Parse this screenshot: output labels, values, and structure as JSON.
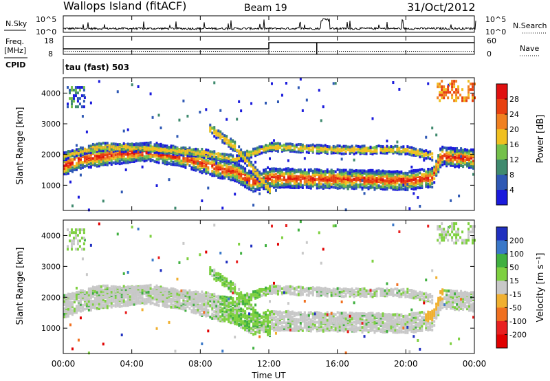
{
  "header": {
    "station": "Wallops Island (fitACF)",
    "beam": "Beam 19",
    "date": "31/Oct/2012"
  },
  "top_panels": {
    "nsky_label": "N.Sky",
    "nsky_ticks": [
      "10^5",
      "10^0"
    ],
    "nsearch_label": "N.Search",
    "nsearch_ticks": [
      "10^5",
      "10^0"
    ],
    "freq_label": "Freq.",
    "freq_unit": "[MHz]",
    "freq_ticks": [
      "18",
      "8"
    ],
    "nave_label": "Nave",
    "nave_ticks": [
      "60",
      "0"
    ],
    "cpid_label": "CPID",
    "cpid_value": "tau (fast) 503"
  },
  "chart_data": [
    {
      "type": "heatmap",
      "title": "",
      "ylabel": "Slant Range [km]",
      "xlabel": "",
      "ylim": [
        180,
        4500
      ],
      "yticks": [
        "1000",
        "2000",
        "3000",
        "4000"
      ],
      "x_range_hours": [
        0,
        24
      ],
      "colorbar_label": "Power [dB]",
      "colorbar_ticks": [
        "4",
        "8",
        "12",
        "16",
        "20",
        "24",
        "28"
      ],
      "colorbar_colors": [
        "#1a1adc",
        "#2e58b4",
        "#3f8a6e",
        "#74c04a",
        "#f0c020",
        "#f08020",
        "#e84010",
        "#e01010"
      ],
      "echo_bands": [
        {
          "name": "main",
          "center_km": [
            [
              0,
              1680
            ],
            [
              1,
              1900
            ],
            [
              3,
              2050
            ],
            [
              5,
              2150
            ],
            [
              7,
              1950
            ],
            [
              9,
              1600
            ],
            [
              10,
              1500
            ],
            [
              11,
              1150
            ],
            [
              12,
              1300
            ],
            [
              16,
              1250
            ],
            [
              20,
              1200
            ],
            [
              21.5,
              1300
            ],
            [
              22,
              2000
            ],
            [
              24,
              1900
            ]
          ],
          "width_km": 300
        },
        {
          "name": "upper",
          "center_km": [
            [
              0,
              2000
            ],
            [
              2,
              2300
            ],
            [
              5,
              2250
            ],
            [
              8,
              2100
            ],
            [
              10,
              1900
            ],
            [
              12,
              2300
            ],
            [
              16,
              2200
            ],
            [
              20,
              2200
            ],
            [
              21.5,
              2000
            ]
          ],
          "width_km": 120
        },
        {
          "name": "slope",
          "center_km": [
            [
              8.5,
              2900
            ],
            [
              10,
              2300
            ],
            [
              12,
              900
            ]
          ],
          "width_km": 150
        }
      ]
    },
    {
      "type": "heatmap",
      "title": "",
      "ylabel": "Slant Range [km]",
      "xlabel": "Time UT",
      "ylim": [
        180,
        4500
      ],
      "yticks": [
        "1000",
        "2000",
        "3000",
        "4000"
      ],
      "x_range_hours": [
        0,
        24
      ],
      "xticks": [
        "00:00",
        "04:00",
        "08:00",
        "12:00",
        "16:00",
        "20:00",
        "00:00"
      ],
      "colorbar_label": "Velocity [m s⁻¹]",
      "colorbar_ticks": [
        "200",
        "100",
        "50",
        "15",
        "-15",
        "-50",
        "-100",
        "-200"
      ],
      "colorbar_colors": [
        "#2030c0",
        "#3a78c8",
        "#40b040",
        "#7ed040",
        "#c8c8c8",
        "#f0b030",
        "#f07020",
        "#e82020",
        "#e00000"
      ]
    }
  ]
}
